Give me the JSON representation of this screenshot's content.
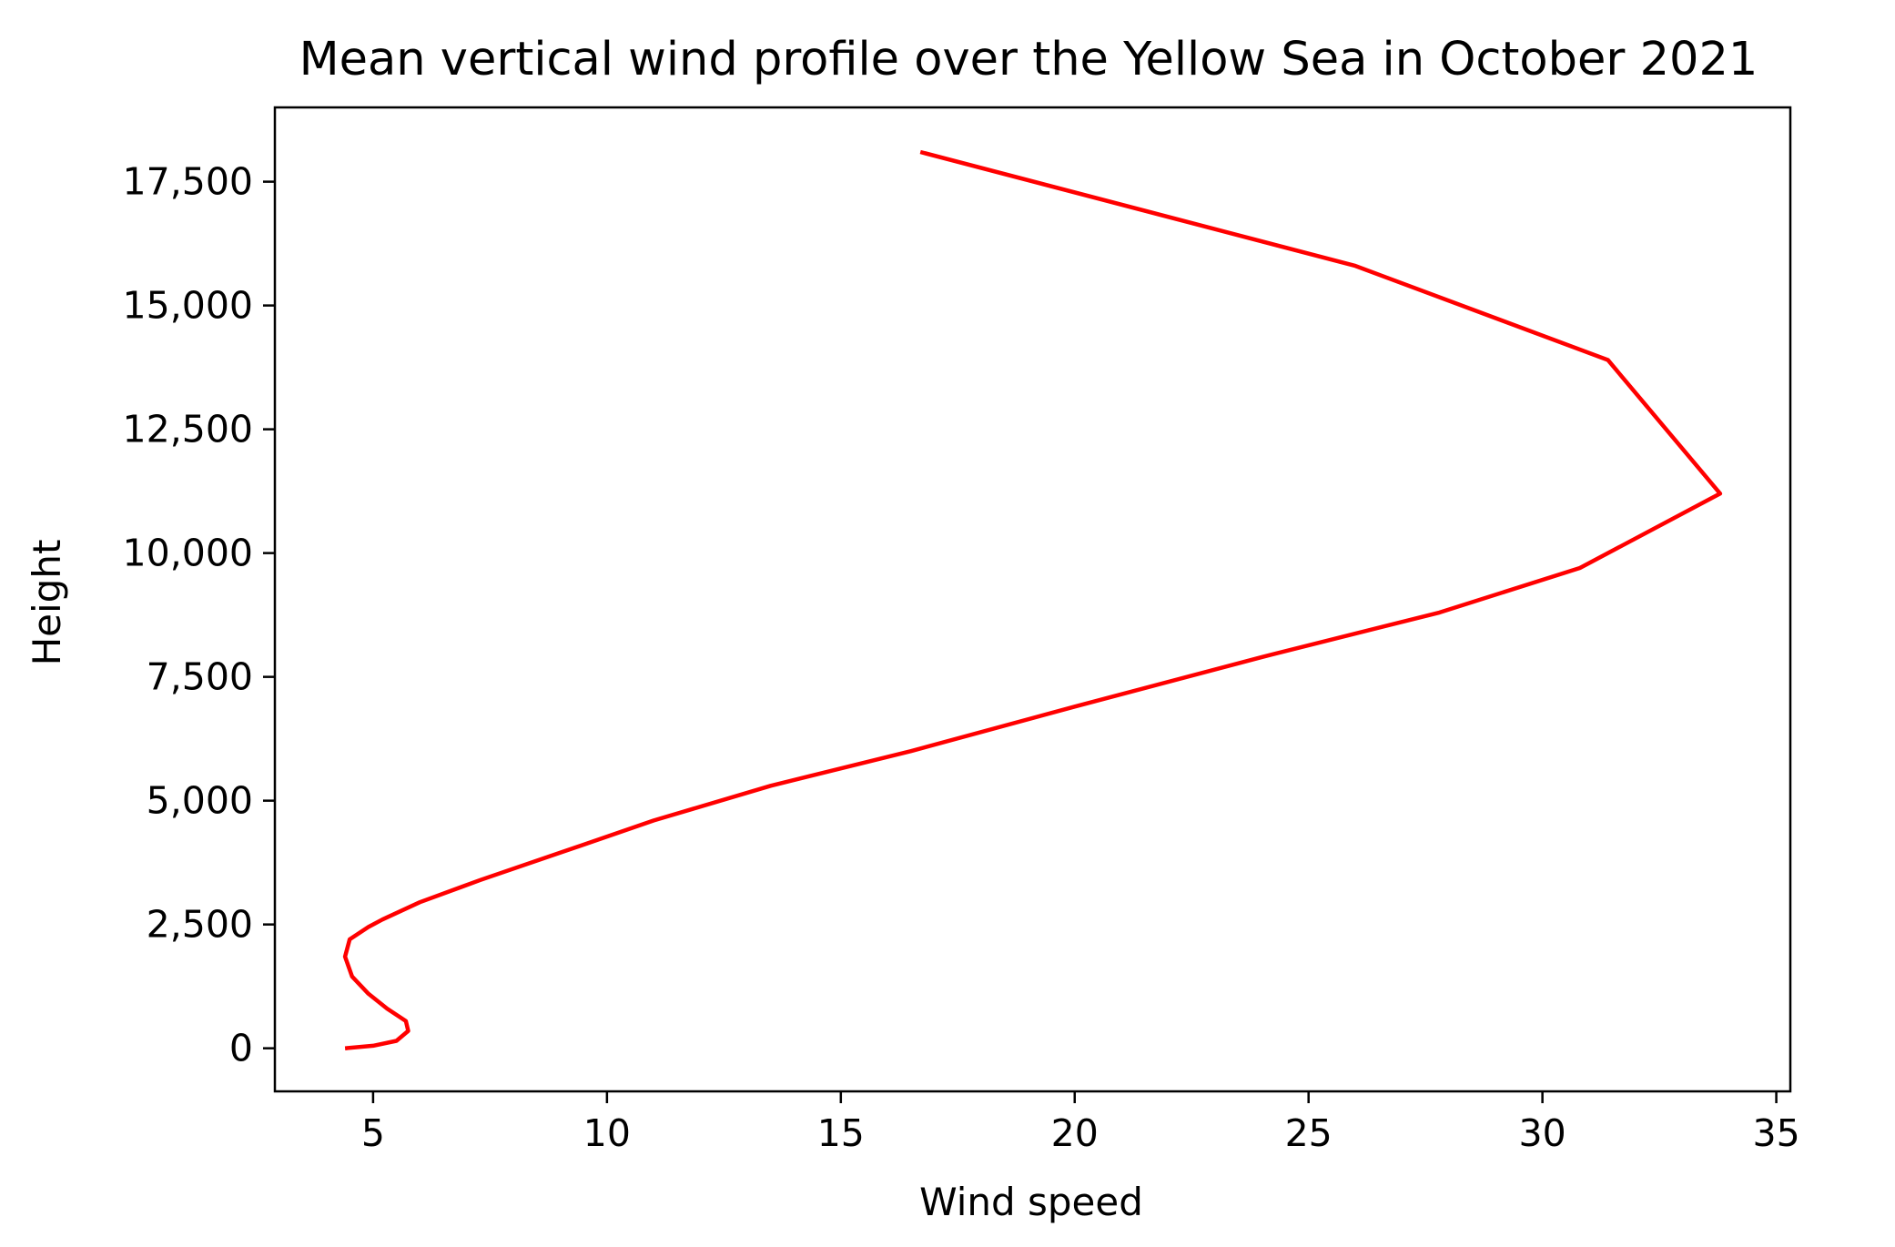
{
  "chart_data": {
    "type": "line",
    "title": "Mean vertical wind profile over the Yellow Sea in October 2021",
    "xlabel": "Wind speed",
    "ylabel": "Height",
    "xlim": [
      2.9,
      35.3
    ],
    "ylim": [
      -870,
      19000
    ],
    "x_ticks": [
      5,
      10,
      15,
      20,
      25,
      30,
      35
    ],
    "x_tick_labels": [
      "5",
      "10",
      "15",
      "20",
      "25",
      "30",
      "35"
    ],
    "y_ticks": [
      0,
      2500,
      5000,
      7500,
      10000,
      12500,
      15000,
      17500
    ],
    "y_tick_labels": [
      "0",
      "2,500",
      "5,000",
      "7,500",
      "10,000",
      "12,500",
      "15,000",
      "17,500"
    ],
    "grid": false,
    "legend": null,
    "series": [
      {
        "color": "#ff0000",
        "x": [
          4.4,
          5.0,
          5.5,
          5.75,
          5.7,
          5.3,
          4.9,
          4.55,
          4.4,
          4.5,
          4.9,
          5.2,
          6.0,
          7.3,
          9.0,
          11.0,
          13.5,
          16.5,
          20.0,
          24.0,
          27.8,
          30.8,
          33.8,
          31.4,
          26.0,
          16.7
        ],
        "y": [
          0,
          50,
          150,
          350,
          550,
          800,
          1100,
          1450,
          1850,
          2200,
          2450,
          2600,
          2950,
          3400,
          3950,
          4600,
          5300,
          6000,
          6900,
          7900,
          8800,
          9700,
          11200,
          13900,
          15800,
          18100
        ]
      }
    ]
  }
}
